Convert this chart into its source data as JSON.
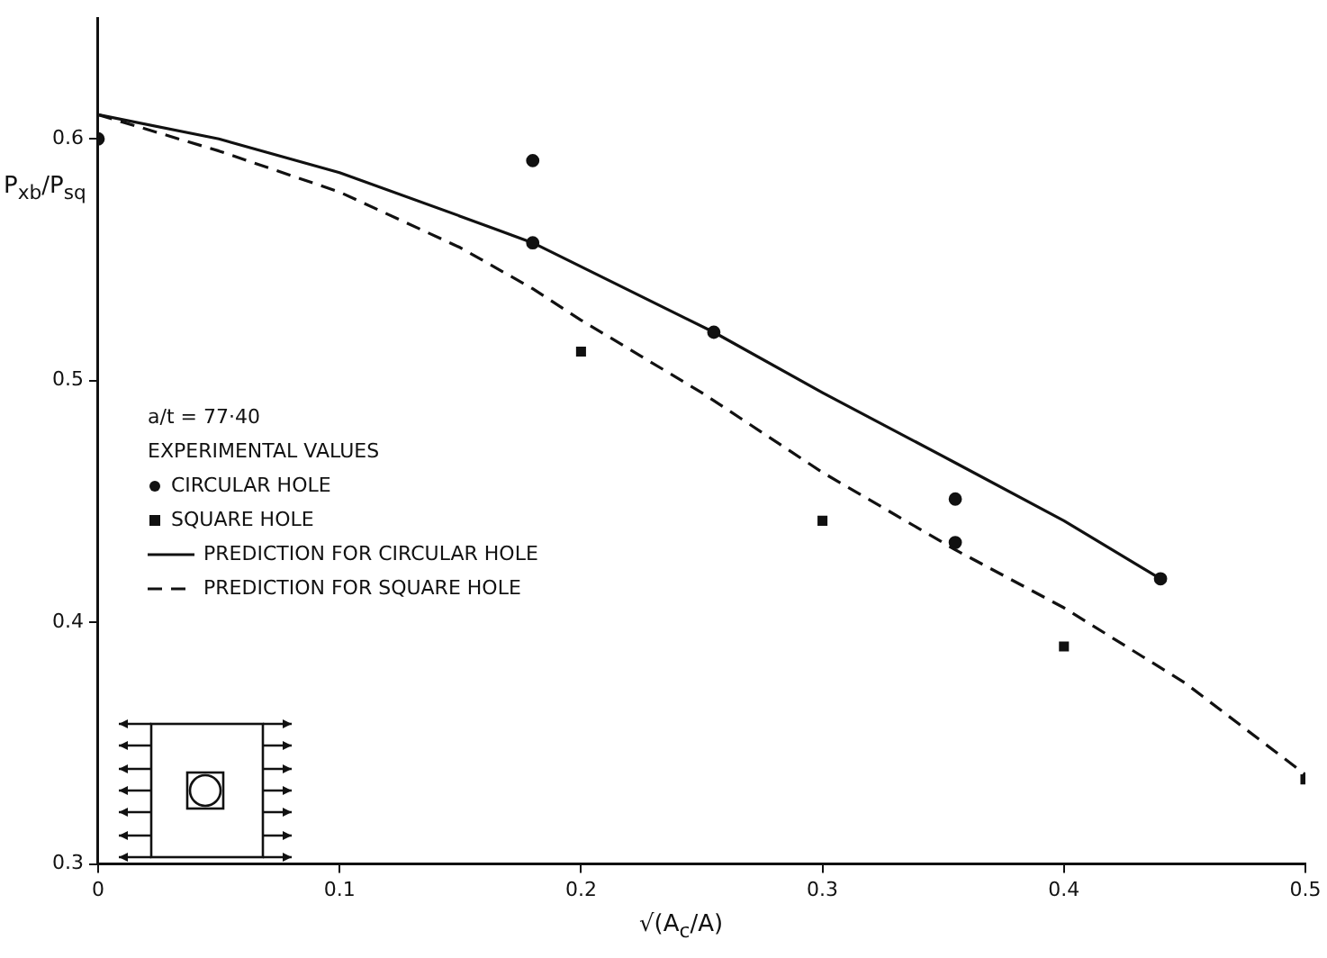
{
  "chart_data": {
    "type": "scatter",
    "xlabel": "√(A$_{c}$/A)",
    "ylabel": "P$_{xb}$/P$_{sq}$",
    "legend_title": "EXPERIMENTAL VALUES",
    "annotations": [
      "a/t = 77·40"
    ],
    "xlim": [
      0,
      0.5
    ],
    "ylim": [
      0.3,
      0.65
    ],
    "xticks": [
      0,
      0.1,
      0.2,
      0.3,
      0.4,
      0.5
    ],
    "yticks": [
      0.3,
      0.4,
      0.5,
      0.6
    ],
    "grid": false,
    "legend": "left",
    "series": [
      {
        "name": "CIRCULAR HOLE",
        "type": "scatter",
        "marker": "circle",
        "color": "#111111",
        "x": [
          0,
          0.18,
          0.18,
          0.255,
          0.355,
          0.355,
          0.44
        ],
        "values": [
          0.6,
          0.591,
          0.557,
          0.52,
          0.451,
          0.433,
          0.418
        ]
      },
      {
        "name": "SQUARE HOLE",
        "type": "scatter",
        "marker": "square",
        "color": "#111111",
        "x": [
          0.2,
          0.3,
          0.4,
          0.5
        ],
        "values": [
          0.512,
          0.442,
          0.39,
          0.335
        ]
      },
      {
        "name": "PREDICTION FOR CIRCULAR HOLE",
        "type": "line",
        "marker": "none",
        "line_style": "solid",
        "color": "#111111",
        "x": [
          0,
          0.05,
          0.1,
          0.15,
          0.18,
          0.255,
          0.3,
          0.355,
          0.4,
          0.44
        ],
        "values": [
          0.61,
          0.6,
          0.586,
          0.568,
          0.557,
          0.52,
          0.495,
          0.466,
          0.442,
          0.418
        ]
      },
      {
        "name": "PREDICTION FOR SQUARE HOLE",
        "type": "line",
        "marker": "none",
        "line_style": "dashed",
        "color": "#111111",
        "x": [
          0,
          0.05,
          0.1,
          0.15,
          0.18,
          0.2,
          0.25,
          0.3,
          0.355,
          0.4,
          0.45,
          0.5
        ],
        "values": [
          0.61,
          0.595,
          0.578,
          0.555,
          0.538,
          0.525,
          0.495,
          0.462,
          0.43,
          0.406,
          0.375,
          0.337
        ]
      }
    ]
  }
}
